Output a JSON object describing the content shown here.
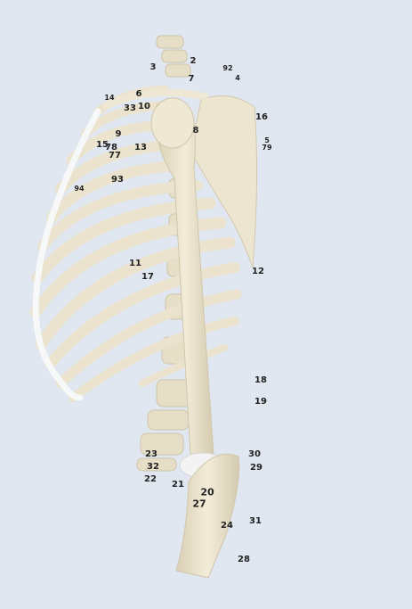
{
  "image": {
    "subject": "skeleton-torso-lateral",
    "colors": {
      "background": "#e1e7f0",
      "bone": "#efe8d4",
      "bone_shade": "#d8ceb3",
      "cartilage": "#f6f7f7"
    }
  },
  "labels": [
    "2",
    "3",
    "92",
    "4",
    "7",
    "14",
    "6",
    "33",
    "10",
    "16",
    "8",
    "5",
    "79",
    "9",
    "15",
    "78",
    "13",
    "77",
    "94",
    "93",
    "11",
    "17",
    "12",
    "18",
    "19",
    "30",
    "23",
    "29",
    "32",
    "22",
    "21",
    "20",
    "27",
    "24",
    "31",
    "28"
  ]
}
